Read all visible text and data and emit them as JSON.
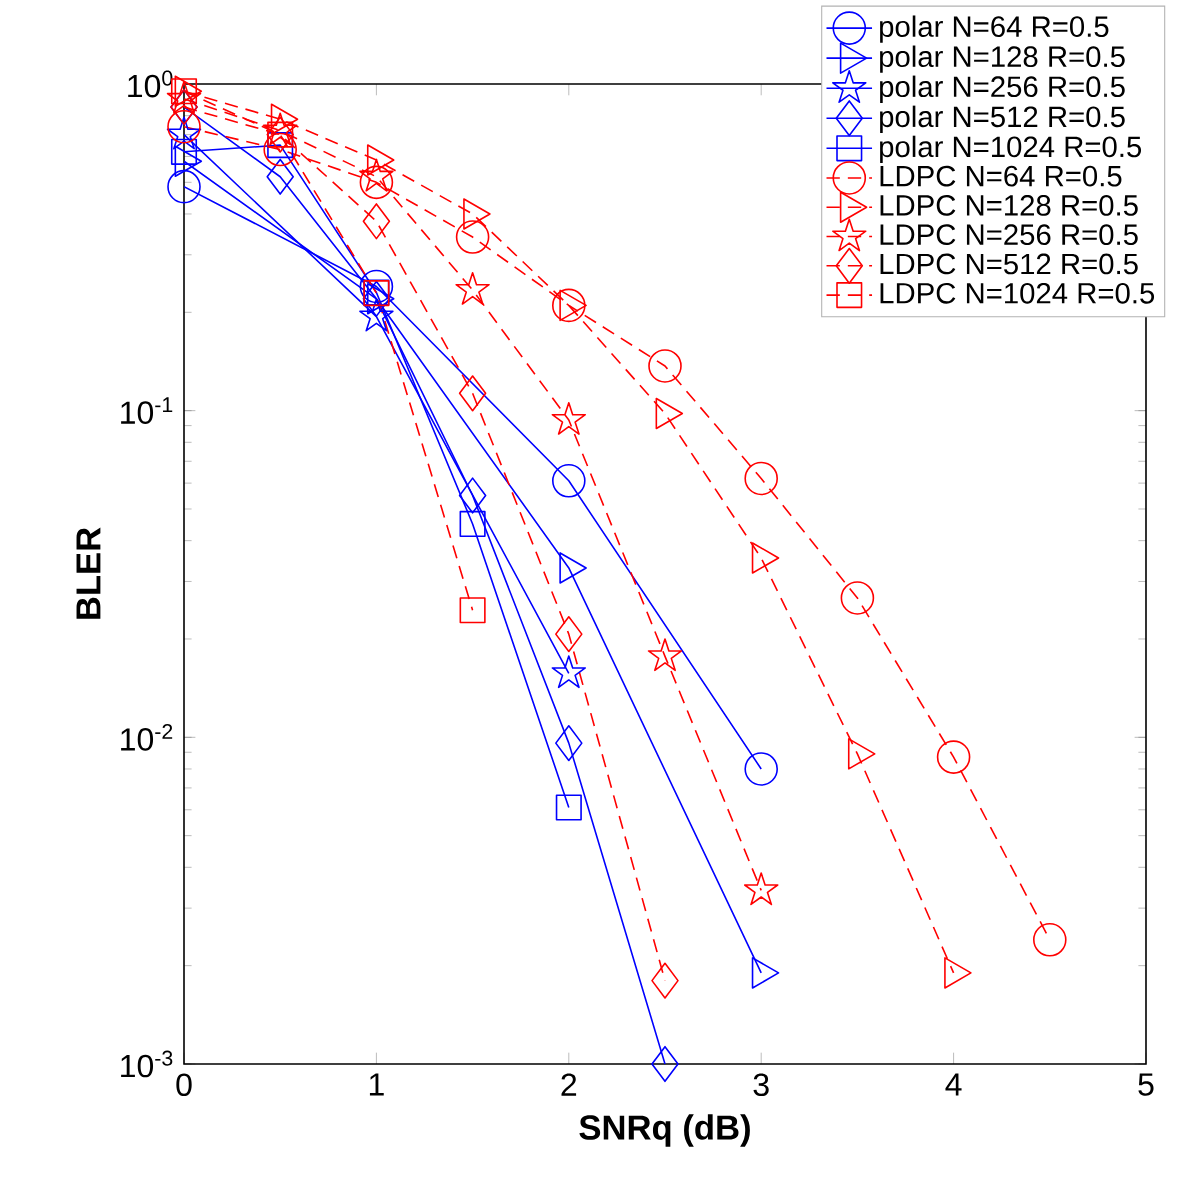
{
  "chart_data": {
    "type": "line",
    "xlabel": "SNRq (dB)",
    "ylabel": "BLER",
    "log": "y",
    "legend": "top right",
    "xlim": [
      0,
      5
    ],
    "ylim": [
      0.001,
      1
    ],
    "xticks": [
      0,
      1,
      2,
      3,
      4,
      5
    ],
    "yticks": [
      {
        "value": 0.001,
        "label": "10$^{-3}$"
      },
      {
        "value": 0.01,
        "label": "10$^{-2}$"
      },
      {
        "value": 0.1,
        "label": "10$^{-1}$"
      },
      {
        "value": 1,
        "label": "10$^{0}$"
      }
    ],
    "series": [
      {
        "name": "polar N=64 R=0.5",
        "color": "#0000ff",
        "marker": "circle",
        "line_style": "solid",
        "x": [
          0,
          1,
          2,
          3
        ],
        "values": [
          0.485,
          0.24,
          0.061,
          0.008
        ]
      },
      {
        "name": "polar N=128 R=0.5",
        "color": "#0000ff",
        "marker": "triangle",
        "line_style": "solid",
        "x": [
          0,
          1,
          2,
          3
        ],
        "values": [
          0.58,
          0.22,
          0.033,
          0.0019
        ]
      },
      {
        "name": "polar N=256 R=0.5",
        "color": "#0000ff",
        "marker": "star",
        "line_style": "solid",
        "x": [
          0,
          1,
          2
        ],
        "values": [
          0.7,
          0.194,
          0.0157
        ]
      },
      {
        "name": "polar N=512 R=0.5",
        "color": "#0000ff",
        "marker": "diamond",
        "line_style": "solid",
        "x": [
          0,
          0.5,
          1,
          1.5,
          2,
          2.5
        ],
        "values": [
          0.85,
          0.52,
          0.22,
          0.055,
          0.0096,
          0.001
        ]
      },
      {
        "name": "polar N=1024 R=0.5",
        "color": "#0000ff",
        "marker": "square",
        "line_style": "solid",
        "x": [
          0,
          0.5,
          1,
          1.5,
          2
        ],
        "values": [
          0.62,
          0.65,
          0.23,
          0.045,
          0.0061
        ]
      },
      {
        "name": "LDPC N=64 R=0.5",
        "color": "#ff0000",
        "marker": "circle",
        "line_style": "dashed",
        "x": [
          0,
          0.5,
          1,
          1.5,
          2,
          2.5,
          3,
          3.5,
          4,
          4.5
        ],
        "values": [
          0.74,
          0.63,
          0.5,
          0.34,
          0.21,
          0.137,
          0.062,
          0.0267,
          0.0087,
          0.0024
        ]
      },
      {
        "name": "LDPC N=128 R=0.5",
        "color": "#ff0000",
        "marker": "triangle",
        "line_style": "dashed",
        "x": [
          0,
          0.5,
          1,
          1.5,
          2,
          2.5,
          3,
          3.5,
          4
        ],
        "values": [
          0.95,
          0.78,
          0.585,
          0.4,
          0.21,
          0.098,
          0.0354,
          0.0089,
          0.0019
        ]
      },
      {
        "name": "LDPC N=256 R=0.5",
        "color": "#ff0000",
        "marker": "star",
        "line_style": "dashed",
        "x": [
          0,
          0.5,
          1,
          1.5,
          2,
          2.5,
          3
        ],
        "values": [
          0.9,
          0.72,
          0.52,
          0.234,
          0.0936,
          0.0177,
          0.0034
        ]
      },
      {
        "name": "LDPC N=512 R=0.5",
        "color": "#ff0000",
        "marker": "diamond",
        "line_style": "dashed",
        "x": [
          0,
          0.5,
          1,
          1.5,
          2,
          2.5
        ],
        "values": [
          0.85,
          0.7,
          0.38,
          0.113,
          0.0207,
          0.0018
        ]
      },
      {
        "name": "LDPC N=1024 R=0.5",
        "color": "#ff0000",
        "marker": "square",
        "line_style": "dashed",
        "x": [
          0,
          0.5,
          1,
          1.5
        ],
        "values": [
          0.95,
          0.7,
          0.229,
          0.0245
        ]
      }
    ]
  }
}
